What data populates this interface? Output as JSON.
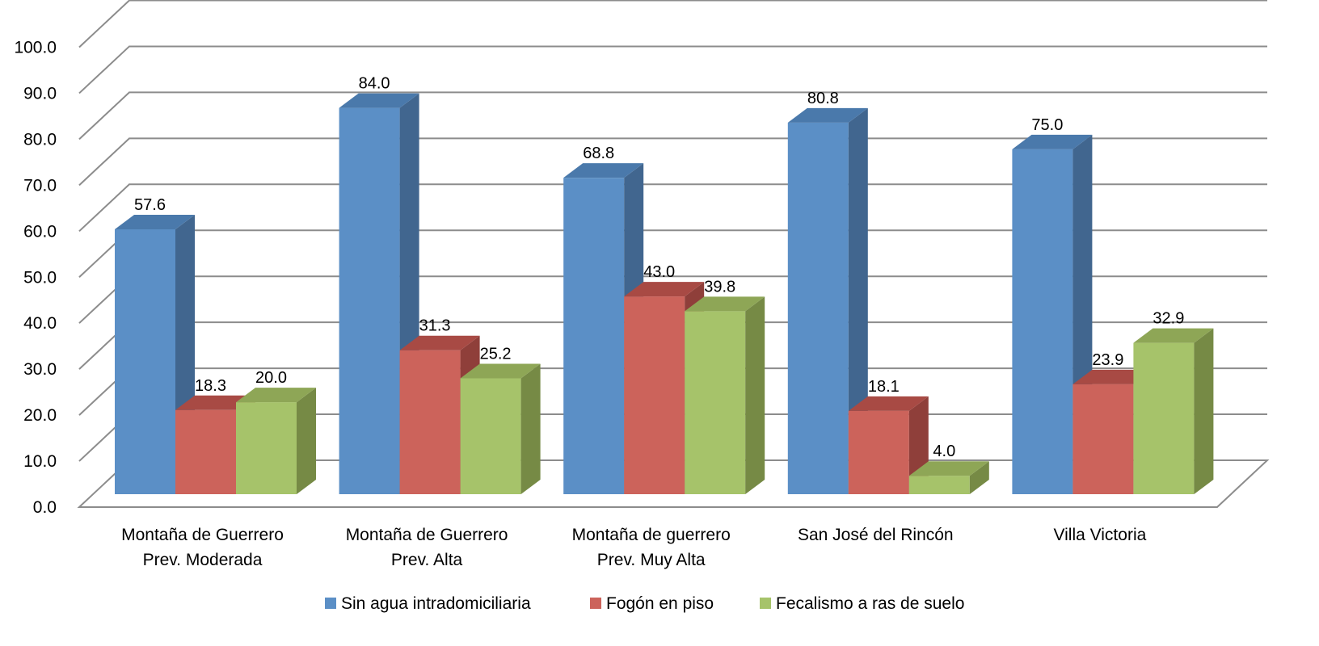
{
  "chart_data": {
    "type": "bar",
    "title": "",
    "xlabel": "",
    "ylabel": "",
    "ylim": [
      0,
      100
    ],
    "yticks": [
      "0.0",
      "10.0",
      "20.0",
      "30.0",
      "40.0",
      "50.0",
      "60.0",
      "70.0",
      "80.0",
      "90.0",
      "100.0"
    ],
    "grid": true,
    "legend_position": "bottom",
    "categories": [
      [
        "Montaña de Guerrero",
        "Prev. Moderada"
      ],
      [
        "Montaña de Guerrero",
        "Prev. Alta"
      ],
      [
        "Montaña de guerrero",
        "Prev. Muy Alta"
      ],
      [
        "San José del Rincón"
      ],
      [
        "Villa Victoria"
      ]
    ],
    "series": [
      {
        "name": "Sin agua intradomiciliaria",
        "values": [
          57.6,
          84.0,
          68.8,
          80.8,
          75.0
        ],
        "labels": [
          "57.6",
          "84.0",
          "68.8",
          "80.8",
          "75.0"
        ],
        "color": "#5b8fc6",
        "side_color": "#41668f",
        "top_color": "#4a79ab"
      },
      {
        "name": "Fogón en piso",
        "values": [
          18.3,
          31.3,
          43.0,
          18.1,
          23.9
        ],
        "labels": [
          "18.3",
          "31.3",
          "43.0",
          "18.1",
          "23.9"
        ],
        "color": "#cc635b",
        "side_color": "#8f3f3a",
        "top_color": "#a84a44"
      },
      {
        "name": "Fecalismo a ras de suelo",
        "values": [
          20.0,
          25.2,
          39.8,
          4.0,
          32.9
        ],
        "labels": [
          "20.0",
          "25.2",
          "39.8",
          "4.0",
          "32.9"
        ],
        "color": "#a6c36a",
        "side_color": "#768a45",
        "top_color": "#8ea656"
      }
    ]
  }
}
